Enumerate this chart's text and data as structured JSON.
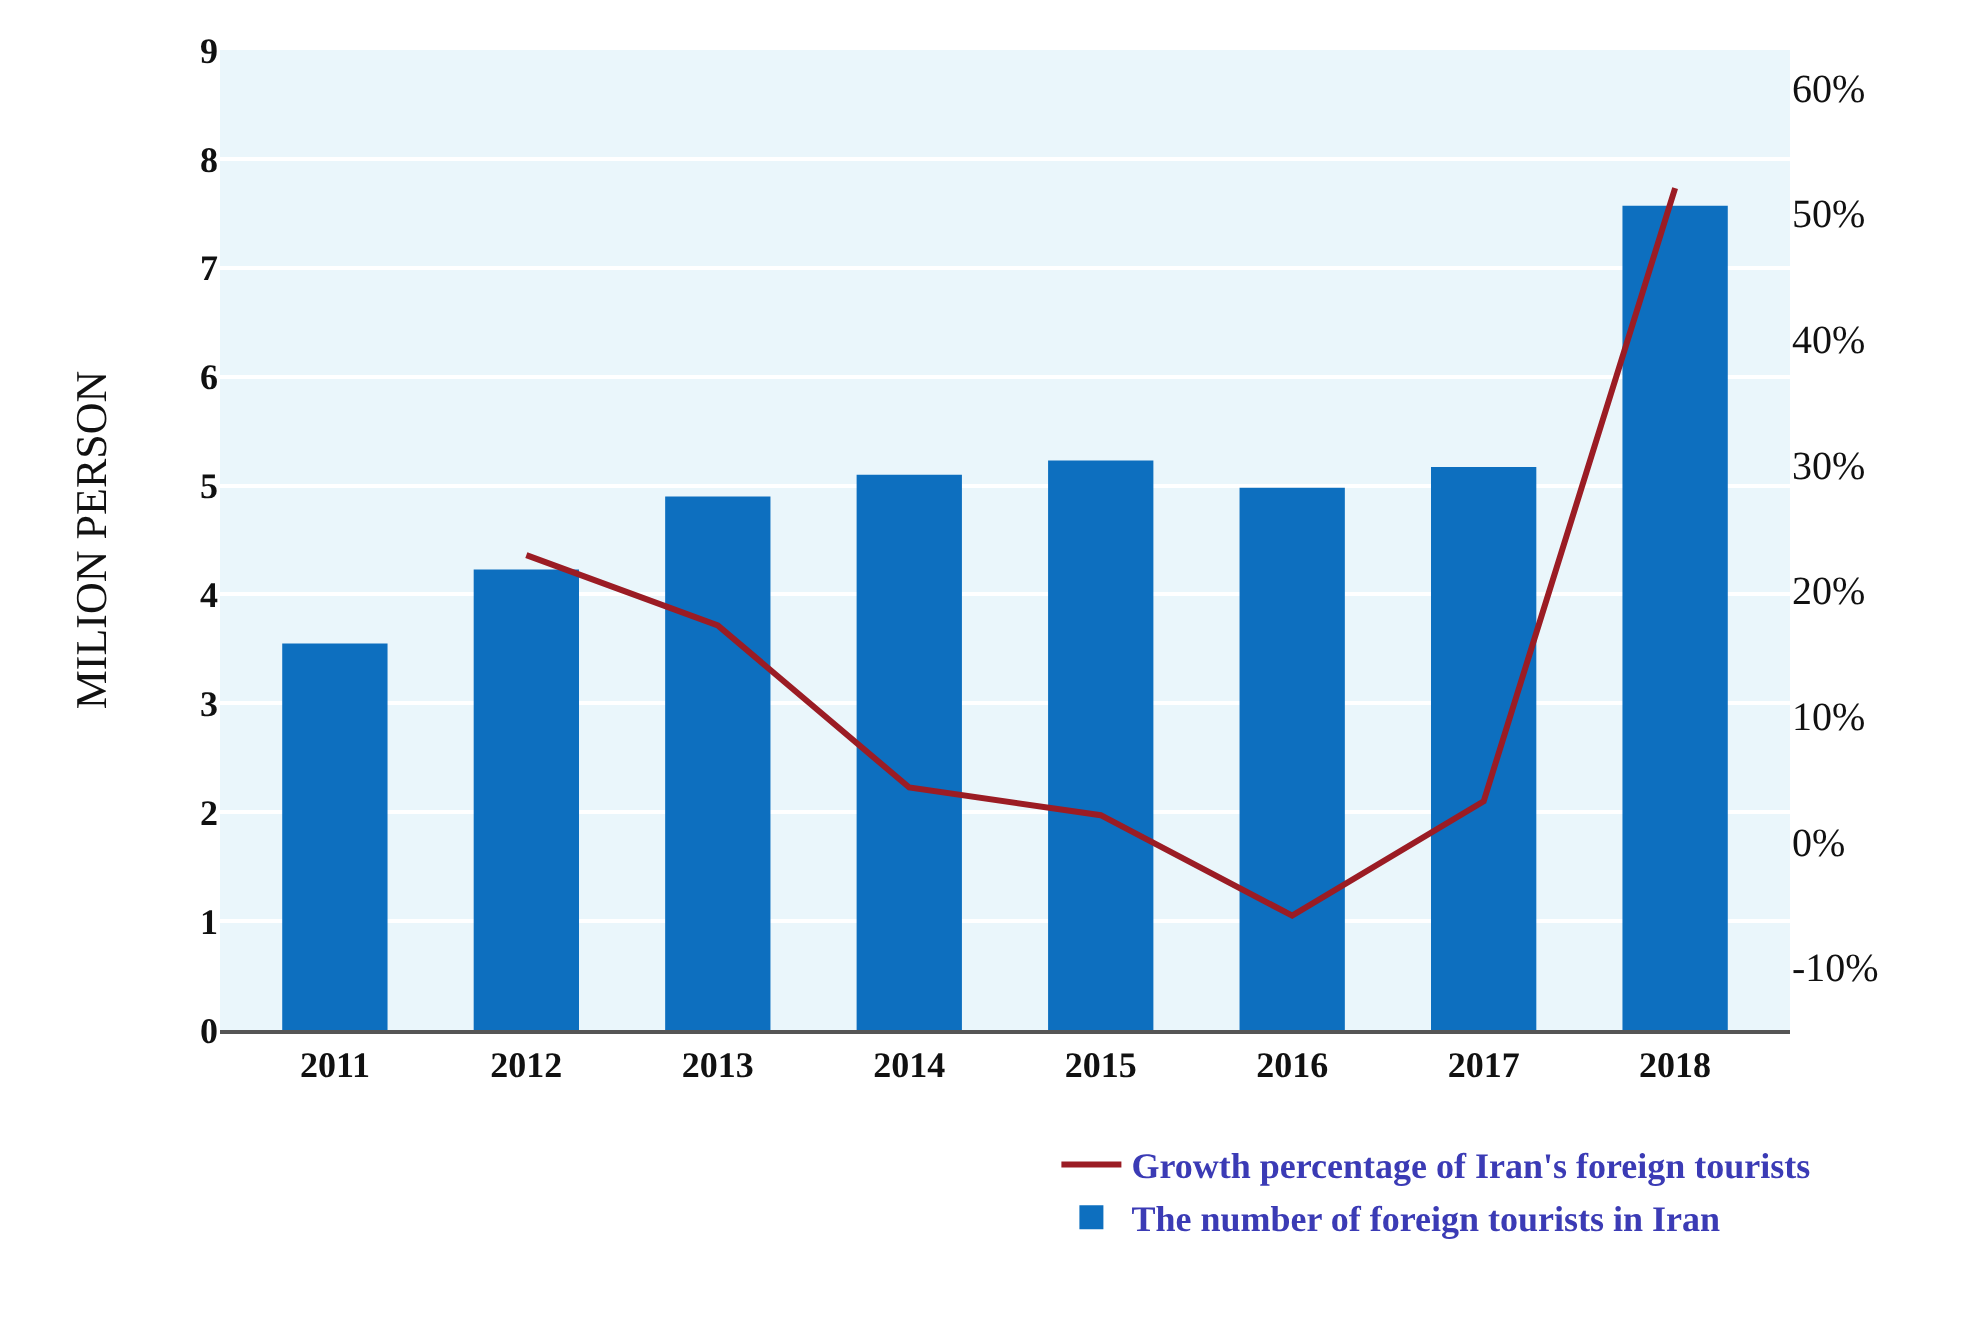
{
  "chart_data": {
    "type": "bar",
    "ylabel": "MILION PERSON",
    "categories": [
      "2011",
      "2012",
      "2013",
      "2014",
      "2015",
      "2016",
      "2017",
      "2018"
    ],
    "series": [
      {
        "type": "line",
        "name": "Growth percentage of Iran's foreign tourists",
        "color": "#9b1c24",
        "axis": "y2",
        "values": [
          null,
          22.8,
          17.2,
          4.3,
          2.1,
          -5.9,
          3.2,
          52
        ]
      },
      {
        "name": "The number of foreign tourists in Iran",
        "color": "#0d6fbf",
        "values": [
          3.55,
          4.23,
          4.9,
          5.1,
          5.23,
          4.98,
          5.17,
          7.57
        ]
      }
    ],
    "ylim": [
      0,
      9
    ],
    "yticks": [
      0,
      1,
      2,
      3,
      4,
      5,
      6,
      7,
      8,
      9
    ],
    "y2lim": [
      -15,
      63
    ],
    "y2ticks": [
      {
        "value": -10,
        "label": "-10%"
      },
      {
        "value": 0,
        "label": "0%"
      },
      {
        "value": 10,
        "label": "10%"
      },
      {
        "value": 20,
        "label": "20%"
      },
      {
        "value": 30,
        "label": "30%"
      },
      {
        "value": 40,
        "label": "40%"
      },
      {
        "value": 50,
        "label": "50%"
      },
      {
        "value": 60,
        "label": "60%"
      }
    ],
    "grid": "y",
    "legend": "bottom right"
  }
}
